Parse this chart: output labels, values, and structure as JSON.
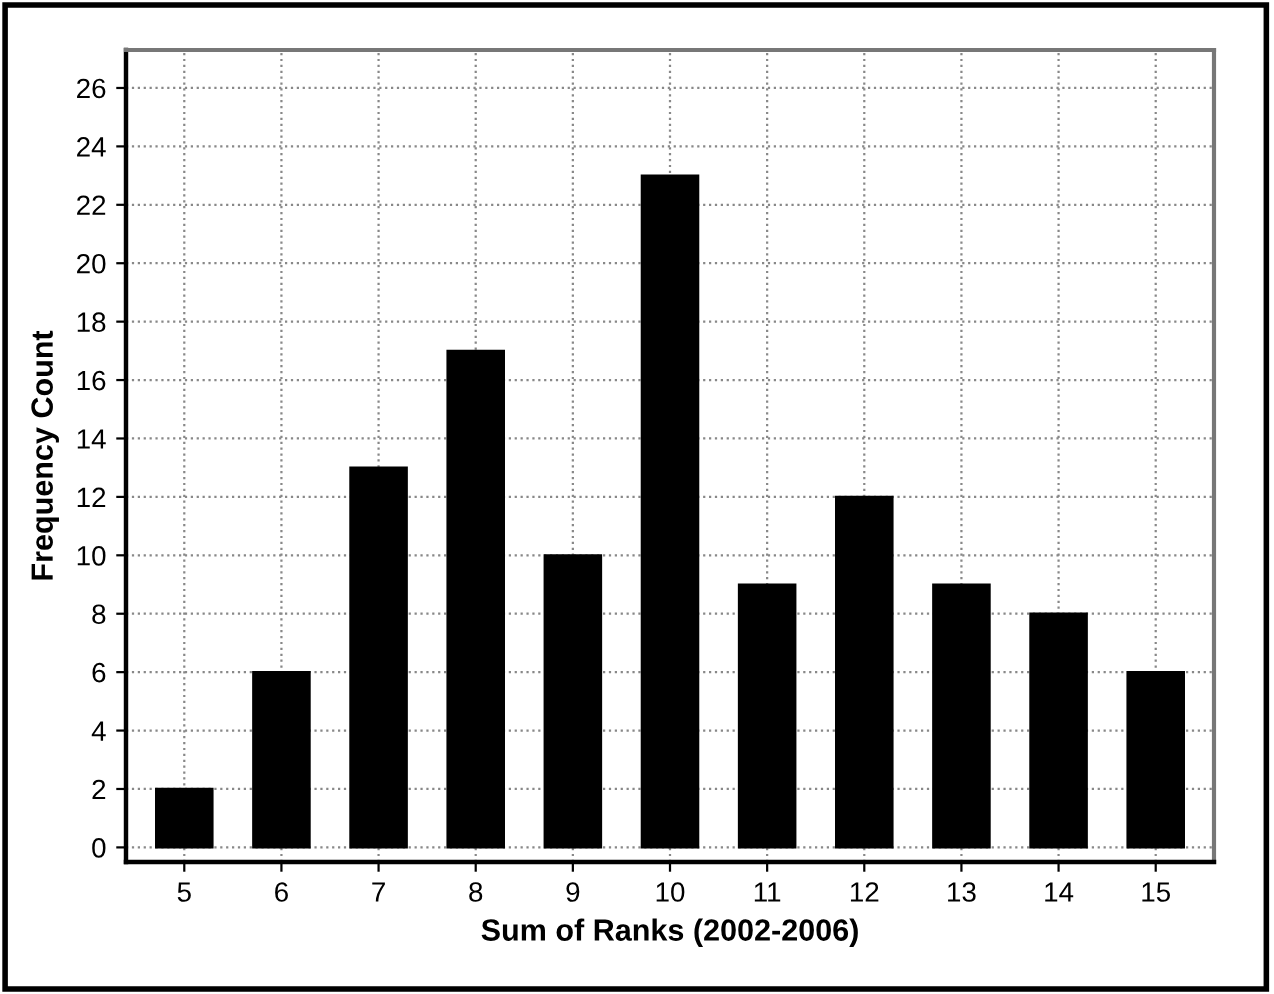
{
  "chart_data": {
    "type": "bar",
    "xlabel": "Sum of Ranks (2002-2006)",
    "ylabel": "Frequency Count",
    "categories": [
      "5",
      "6",
      "7",
      "8",
      "9",
      "10",
      "11",
      "12",
      "13",
      "14",
      "15"
    ],
    "values": [
      2,
      6,
      13,
      17,
      10,
      23,
      9,
      12,
      9,
      8,
      6
    ],
    "color": "#000000",
    "ylim": [
      -0.5,
      27.3
    ],
    "yticks": [
      0,
      2,
      4,
      6,
      8,
      10,
      12,
      14,
      16,
      18,
      20,
      22,
      24,
      26
    ],
    "grid": true
  }
}
